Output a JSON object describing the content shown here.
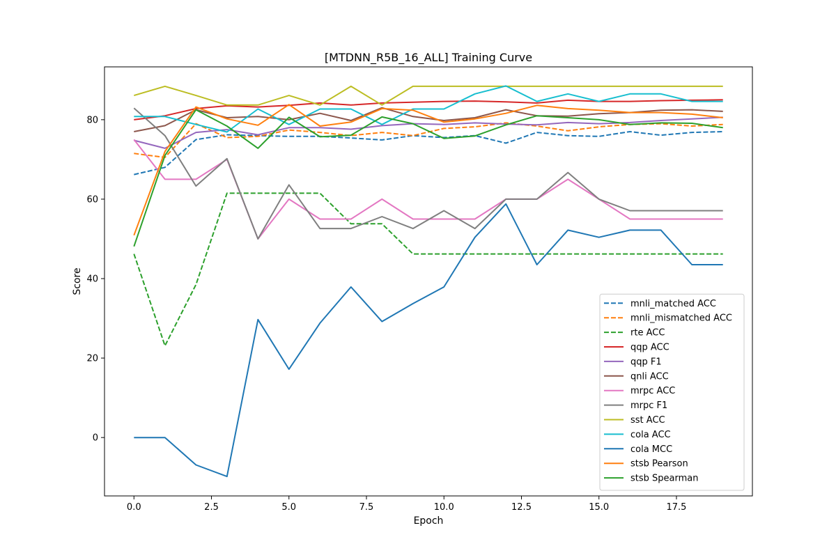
{
  "chart_data": {
    "type": "line",
    "title": "[MTDNN_R5B_16_ALL] Training Curve",
    "xlabel": "Epoch",
    "ylabel": "Score",
    "xlim": [
      -0.95,
      19.95
    ],
    "ylim": [
      -14.7,
      93.3
    ],
    "xticks": [
      0.0,
      2.5,
      5.0,
      7.5,
      10.0,
      12.5,
      15.0,
      17.5
    ],
    "xtick_labels": [
      "0.0",
      "2.5",
      "5.0",
      "7.5",
      "10.0",
      "12.5",
      "15.0",
      "17.5"
    ],
    "yticks": [
      0,
      20,
      40,
      60,
      80
    ],
    "ytick_labels": [
      "0",
      "20",
      "40",
      "60",
      "80"
    ],
    "grid": false,
    "legend_position": "lower-right",
    "x": [
      0,
      1,
      2,
      3,
      4,
      5,
      6,
      7,
      8,
      9,
      10,
      11,
      12,
      13,
      14,
      15,
      16,
      17,
      18,
      19
    ],
    "series": [
      {
        "name": "mnli_matched ACC",
        "color": "#1f77b4",
        "dash": "dashed",
        "values": [
          66.2,
          68.0,
          75.0,
          76.2,
          76.0,
          75.8,
          75.8,
          75.4,
          74.9,
          76.0,
          75.5,
          76.0,
          74.1,
          76.8,
          76.0,
          75.8,
          77.0,
          76.1,
          76.8,
          77.0
        ]
      },
      {
        "name": "mnli_mismatched ACC",
        "color": "#ff7f0e",
        "dash": "dashed",
        "values": [
          71.5,
          70.5,
          79.0,
          75.5,
          75.8,
          77.4,
          76.8,
          76.0,
          76.8,
          76.0,
          77.8,
          78.2,
          79.2,
          78.4,
          77.2,
          78.2,
          78.8,
          79.0,
          78.4,
          78.8
        ]
      },
      {
        "name": "rte ACC",
        "color": "#2ca02c",
        "dash": "dashed",
        "values": [
          46.2,
          23.1,
          38.5,
          61.5,
          61.5,
          61.5,
          61.5,
          53.8,
          53.8,
          46.2,
          46.2,
          46.2,
          46.2,
          46.2,
          46.2,
          46.2,
          46.2,
          46.2,
          46.2,
          46.2
        ]
      },
      {
        "name": "qqp ACC",
        "color": "#d62728",
        "dash": "solid",
        "values": [
          80.0,
          81.0,
          82.8,
          83.5,
          83.2,
          83.6,
          84.2,
          83.7,
          84.2,
          84.4,
          84.6,
          84.7,
          84.5,
          84.2,
          84.9,
          84.6,
          84.6,
          84.8,
          84.9,
          85.0
        ]
      },
      {
        "name": "qqp F1",
        "color": "#9467bd",
        "dash": "solid",
        "values": [
          74.8,
          72.8,
          76.8,
          77.5,
          76.2,
          78.0,
          78.0,
          77.6,
          78.5,
          79.0,
          78.8,
          79.2,
          78.9,
          78.7,
          79.3,
          79.0,
          79.3,
          79.8,
          80.2,
          80.6
        ]
      },
      {
        "name": "qnli ACC",
        "color": "#8c564b",
        "dash": "solid",
        "values": [
          77.0,
          78.5,
          82.5,
          80.5,
          80.8,
          80.0,
          81.6,
          79.8,
          83.0,
          80.8,
          79.8,
          80.5,
          82.5,
          81.0,
          80.9,
          81.5,
          81.8,
          82.4,
          82.5,
          82.1
        ]
      },
      {
        "name": "mrpc ACC",
        "color": "#e377c2",
        "dash": "solid",
        "values": [
          75.0,
          65.0,
          65.0,
          70.0,
          50.0,
          60.0,
          55.0,
          55.0,
          60.0,
          55.0,
          55.0,
          55.0,
          60.0,
          60.0,
          65.0,
          60.0,
          55.0,
          55.0,
          55.0,
          55.0
        ]
      },
      {
        "name": "mrpc F1",
        "color": "#7f7f7f",
        "dash": "solid",
        "values": [
          82.9,
          76.0,
          63.3,
          70.2,
          50.0,
          63.6,
          52.6,
          52.6,
          55.6,
          52.6,
          57.1,
          52.6,
          60.0,
          60.0,
          66.7,
          60.0,
          57.1,
          57.1,
          57.1,
          57.1
        ]
      },
      {
        "name": "sst ACC",
        "color": "#bcbd22",
        "dash": "solid",
        "values": [
          86.1,
          88.4,
          86.1,
          83.7,
          83.7,
          86.1,
          83.7,
          88.4,
          83.7,
          88.4,
          88.4,
          88.4,
          88.4,
          88.4,
          88.4,
          88.4,
          88.4,
          88.4,
          88.4,
          88.4
        ]
      },
      {
        "name": "cola ACC",
        "color": "#17becf",
        "dash": "solid",
        "values": [
          80.8,
          80.8,
          78.8,
          76.9,
          82.7,
          78.8,
          82.7,
          82.7,
          78.8,
          82.7,
          82.7,
          86.5,
          88.5,
          84.6,
          86.5,
          84.6,
          86.5,
          86.5,
          84.6,
          84.6
        ]
      },
      {
        "name": "cola MCC",
        "color": "#1f77b4",
        "dash": "solid",
        "values": [
          0.0,
          0.0,
          -6.9,
          -9.8,
          29.7,
          17.2,
          28.8,
          37.9,
          29.2,
          33.7,
          37.9,
          50.4,
          58.8,
          43.5,
          52.2,
          50.4,
          52.2,
          52.2,
          43.5,
          43.5
        ]
      },
      {
        "name": "stsb Pearson",
        "color": "#ff7f0e",
        "dash": "solid",
        "values": [
          50.9,
          72.0,
          83.2,
          80.2,
          78.6,
          83.8,
          78.4,
          79.4,
          82.8,
          82.4,
          79.4,
          80.2,
          81.6,
          83.6,
          82.8,
          82.4,
          81.8,
          81.8,
          81.4,
          80.5
        ]
      },
      {
        "name": "stsb Spearman",
        "color": "#2ca02c",
        "dash": "solid",
        "values": [
          48.1,
          71.0,
          82.5,
          78.4,
          72.8,
          80.6,
          75.7,
          76.1,
          80.7,
          79.0,
          75.3,
          75.9,
          78.7,
          81.0,
          80.5,
          80.0,
          78.8,
          79.2,
          79.1,
          78.0
        ]
      }
    ]
  }
}
